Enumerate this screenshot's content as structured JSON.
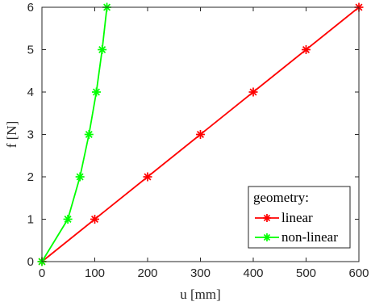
{
  "chart_data": {
    "type": "line",
    "xlabel": "u [mm]",
    "ylabel": "f [N]",
    "xlim": [
      0,
      600
    ],
    "ylim": [
      0,
      6
    ],
    "xticks": [
      0,
      100,
      200,
      300,
      400,
      500,
      600
    ],
    "yticks": [
      0,
      1,
      2,
      3,
      4,
      5,
      6
    ],
    "grid": false,
    "legend_title": "geometry:",
    "legend_position": "bottom-right",
    "series": [
      {
        "name": "linear",
        "color": "#ff0000",
        "marker": "asterisk",
        "x": [
          0,
          100,
          200,
          300,
          400,
          500,
          600
        ],
        "y": [
          0,
          1,
          2,
          3,
          4,
          5,
          6
        ]
      },
      {
        "name": "non-linear",
        "color": "#00ff00",
        "marker": "asterisk",
        "x": [
          0,
          49,
          72,
          89,
          103,
          114,
          123
        ],
        "y": [
          0,
          1,
          2,
          3,
          4,
          5,
          6
        ]
      }
    ]
  }
}
